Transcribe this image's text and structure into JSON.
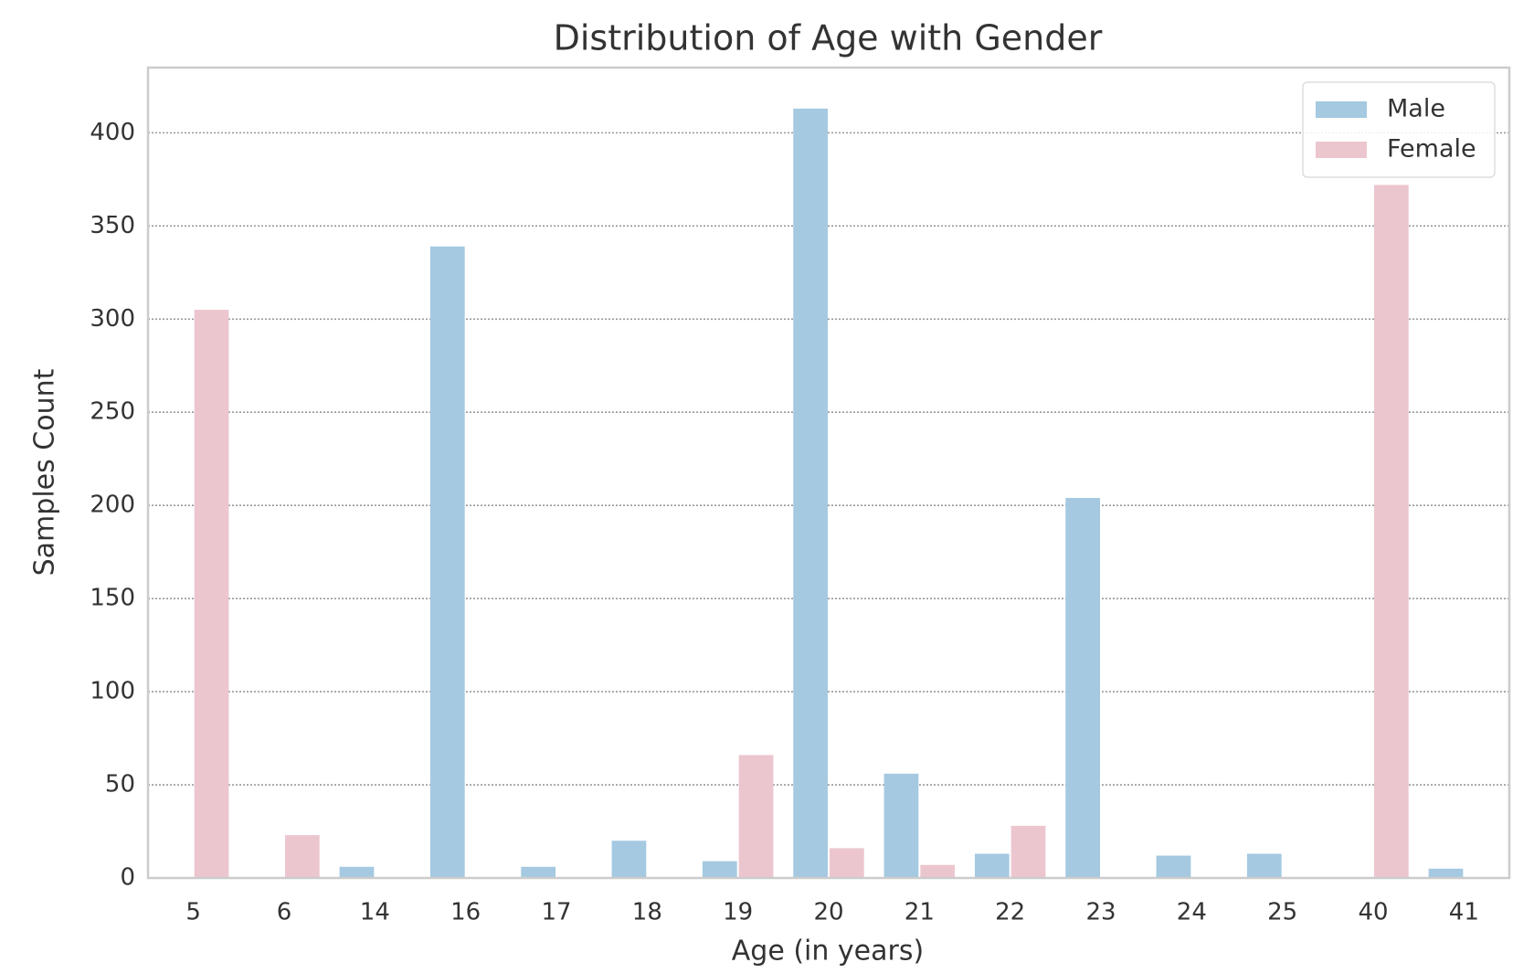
{
  "chart_data": {
    "type": "bar",
    "title": "Distribution of Age with Gender",
    "x_label": "Age (in years)",
    "y_label": "Samples Count",
    "categories": [
      "5",
      "6",
      "14",
      "16",
      "17",
      "18",
      "19",
      "20",
      "21",
      "22",
      "23",
      "24",
      "25",
      "40",
      "41"
    ],
    "series": [
      {
        "name": "Male",
        "color": "#a5c9e1",
        "values": [
          null,
          null,
          6,
          339,
          6,
          20,
          9,
          413,
          56,
          13,
          204,
          12,
          13,
          null,
          5
        ]
      },
      {
        "name": "Female",
        "color": "#ecc6cf",
        "values": [
          305,
          23,
          null,
          null,
          null,
          null,
          66,
          16,
          7,
          28,
          null,
          null,
          null,
          372,
          null
        ]
      }
    ],
    "ylim": [
      0,
      435
    ],
    "yticks": [
      0,
      50,
      100,
      150,
      200,
      250,
      300,
      350,
      400
    ],
    "grid": true,
    "legend": "upper right"
  }
}
